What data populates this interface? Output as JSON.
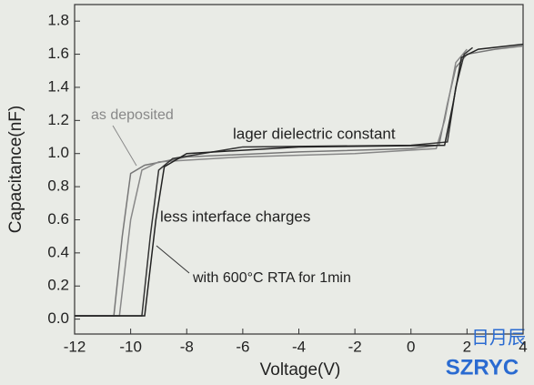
{
  "chart_data": {
    "type": "line",
    "x_label": "Voltage(V)",
    "y_label": "Capacitance(nF)",
    "xlim": [
      -12,
      4
    ],
    "xticks": [
      -12,
      -10,
      -8,
      -6,
      -4,
      -2,
      0,
      2,
      4
    ],
    "ylim": [
      -0.09,
      1.9
    ],
    "yticks": [
      {
        "value": 0,
        "label": "0.0"
      },
      0.2,
      0.4,
      0.6,
      0.8,
      {
        "value": 1,
        "label": "1.0"
      },
      1.2,
      1.4,
      1.6,
      1.8
    ],
    "series": [
      {
        "color": "#777777",
        "x": [
          -12,
          -10.6,
          -10.3,
          -10.0,
          -9.5,
          -8,
          -4,
          0,
          1.0,
          1.3,
          1.6,
          2.0,
          3,
          4
        ],
        "values": [
          0.02,
          0.02,
          0.5,
          0.88,
          0.93,
          0.98,
          1.01,
          1.03,
          1.05,
          1.3,
          1.52,
          1.6,
          1.63,
          1.65
        ]
      },
      {
        "color": "#888888",
        "x": [
          -12,
          -10.4,
          -10.0,
          -9.6,
          -9,
          -6,
          -2,
          0.9,
          1.2,
          1.6,
          2.0
        ],
        "values": [
          0.02,
          0.02,
          0.6,
          0.9,
          0.95,
          0.98,
          1.0,
          1.03,
          1.2,
          1.55,
          1.63
        ]
      },
      {
        "color": "#333333",
        "x": [
          -12,
          -9.6,
          -9.3,
          -9.0,
          -8.5,
          -6,
          0,
          1.3,
          1.6,
          1.9,
          2.2
        ],
        "values": [
          0.02,
          0.02,
          0.5,
          0.9,
          0.97,
          1.04,
          1.05,
          1.07,
          1.4,
          1.6,
          1.64
        ]
      },
      {
        "color": "#222222",
        "x": [
          -12,
          -9.5,
          -9.1,
          -8.8,
          -8,
          -4,
          1.2,
          1.5,
          1.8,
          2.4,
          4
        ],
        "values": [
          0.02,
          0.02,
          0.6,
          0.92,
          1.0,
          1.04,
          1.05,
          1.3,
          1.58,
          1.63,
          1.66
        ]
      }
    ],
    "annotations": [
      "as deposited",
      "lager dielectric constant",
      "less interface charges",
      "with 600°C RTA for 1min"
    ],
    "watermark": [
      "日月辰",
      "SZRYC"
    ]
  }
}
